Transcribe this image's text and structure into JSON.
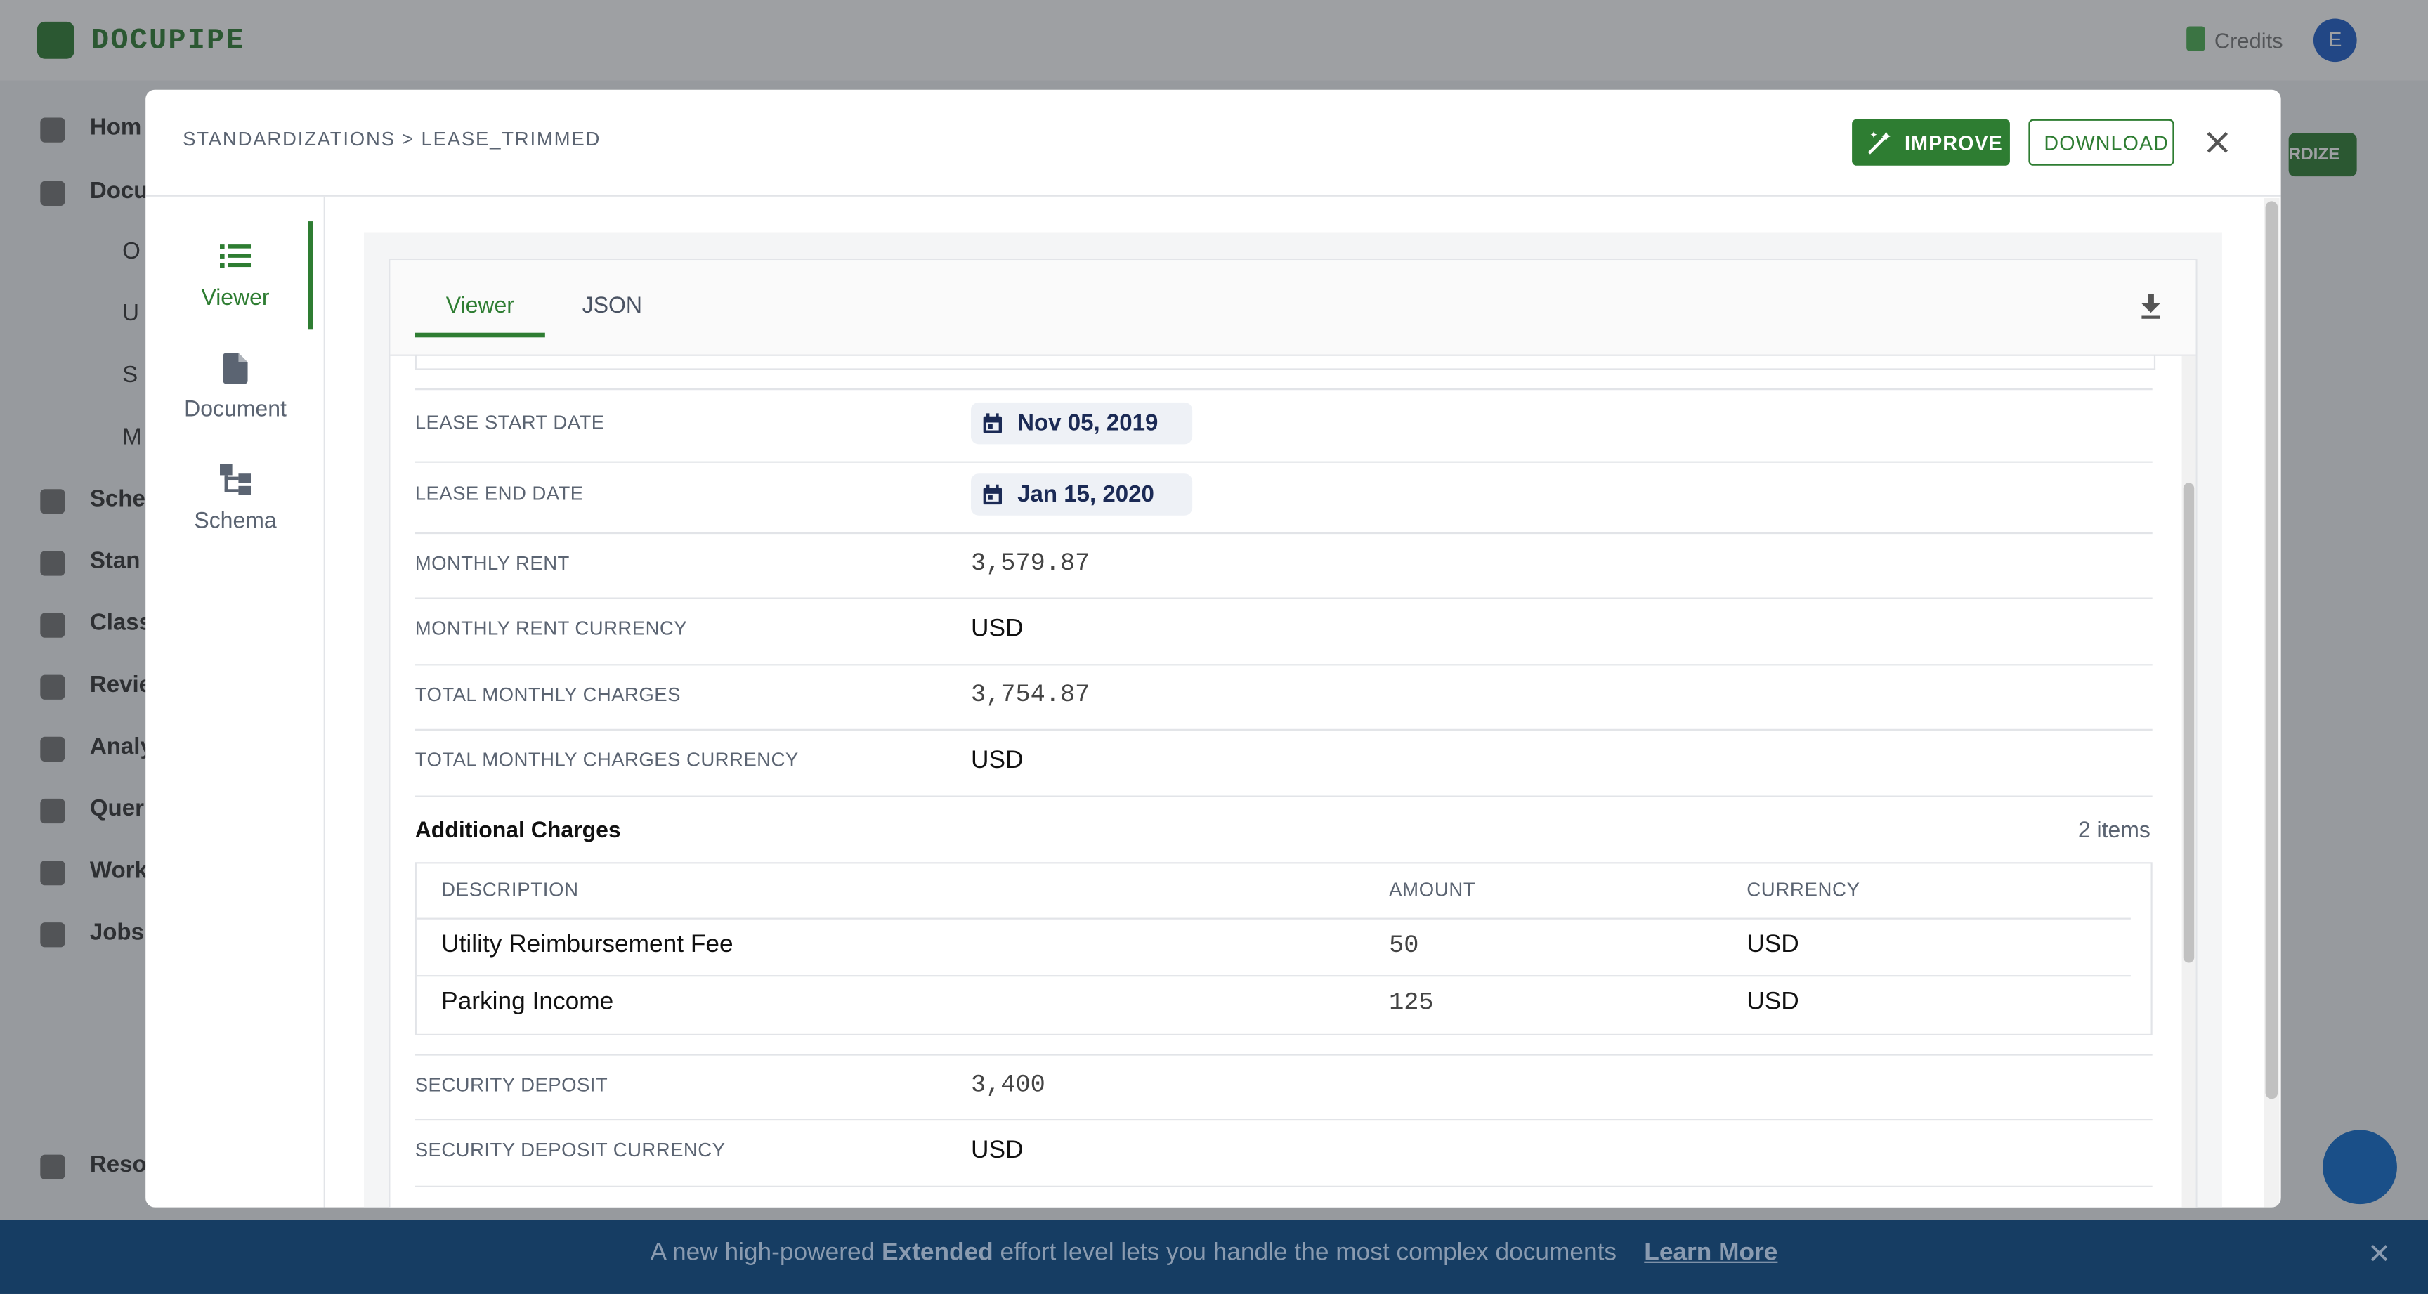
{
  "background": {
    "logo": "DOCUPIPE",
    "credits": "Credits",
    "avatar": "E",
    "button": "RDIZE",
    "nav": [
      "Hom",
      "Docu",
      "O",
      "U",
      "S",
      "M",
      "Sche",
      "Stan",
      "Class",
      "Revie",
      "Analy",
      "Quer",
      "Work",
      "Jobs",
      "Reso"
    ]
  },
  "banner": {
    "text_before": "A new high-powered ",
    "emphasis": "Extended",
    "text_after": " effort level lets you handle the most complex documents",
    "link": "Learn More"
  },
  "modal": {
    "breadcrumb": "STANDARDIZATIONS > LEASE_TRIMMED",
    "actions": [
      "IMPROVE",
      "DOWNLOAD"
    ],
    "nav": [
      "Viewer",
      "Document",
      "Schema"
    ],
    "tabs": [
      "Viewer",
      "JSON"
    ],
    "fields": [
      {
        "label": "LEASE START DATE",
        "value": "Nov 05, 2019"
      },
      {
        "label": "LEASE END DATE",
        "value": "Jan 15, 2020"
      },
      {
        "label": "MONTHLY RENT",
        "value": "3,579.87"
      },
      {
        "label": "MONTHLY RENT CURRENCY",
        "value": "USD"
      },
      {
        "label": "TOTAL MONTHLY CHARGES",
        "value": "3,754.87"
      },
      {
        "label": "TOTAL MONTHLY CHARGES CURRENCY",
        "value": "USD"
      }
    ],
    "additional_charges": {
      "title": "Additional Charges",
      "count": "2 items",
      "columns": [
        "DESCRIPTION",
        "AMOUNT",
        "CURRENCY"
      ],
      "rows": [
        [
          "Utility Reimbursement Fee",
          "50",
          "USD"
        ],
        [
          "Parking Income",
          "125",
          "USD"
        ]
      ]
    },
    "fields_after": [
      {
        "label": "SECURITY DEPOSIT",
        "value": "3,400"
      },
      {
        "label": "SECURITY DEPOSIT CURRENCY",
        "value": "USD"
      }
    ]
  }
}
